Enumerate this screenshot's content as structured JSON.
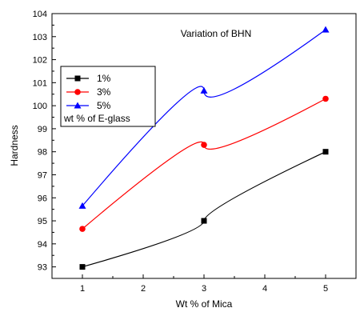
{
  "chart_data": {
    "type": "line",
    "title": "Variation of BHN",
    "xlabel": "Wt % of Mica",
    "ylabel": "Hardness",
    "xlim": [
      0.5,
      5.5
    ],
    "ylim": [
      92.5,
      104
    ],
    "xticks": [
      1,
      2,
      3,
      4,
      5
    ],
    "yticks": [
      93,
      94,
      95,
      96,
      97,
      98,
      99,
      100,
      101,
      102,
      103,
      104
    ],
    "grid": false,
    "legend_position": "top-left",
    "legend_title": "wt % of E-glass",
    "series": [
      {
        "name": "1%",
        "color": "#000000",
        "marker": "square",
        "x": [
          1,
          3,
          5
        ],
        "y": [
          93.0,
          95.0,
          98.0
        ]
      },
      {
        "name": "3%",
        "color": "#ff0000",
        "marker": "circle",
        "x": [
          1,
          3,
          5
        ],
        "y": [
          94.65,
          98.3,
          100.3
        ]
      },
      {
        "name": "5%",
        "color": "#0000ff",
        "marker": "triangle",
        "x": [
          1,
          3,
          5
        ],
        "y": [
          95.65,
          100.65,
          103.3
        ]
      }
    ]
  }
}
